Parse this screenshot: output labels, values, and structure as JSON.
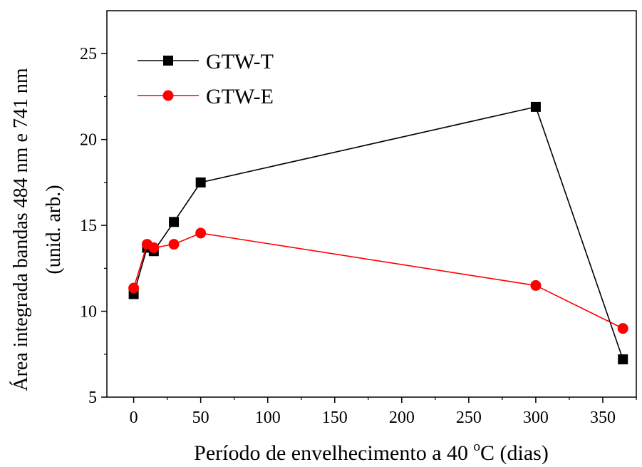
{
  "chart_data": {
    "type": "line",
    "title": "",
    "xlabel_main": "Período de envelhecimento a 40 ",
    "xlabel_sup": "o",
    "xlabel_tail": "C (dias)",
    "ylabel_line1": "Área integrada bandas 484 nm e 741 nm",
    "ylabel_line2": "(unid. arb.)",
    "xlim": [
      -20,
      375
    ],
    "ylim": [
      5,
      27.5
    ],
    "xticks": [
      0,
      50,
      100,
      150,
      200,
      250,
      300,
      350
    ],
    "yticks": [
      5,
      10,
      15,
      20,
      25
    ],
    "grid": false,
    "legend_position": "top-left",
    "series": [
      {
        "name": "GTW-T",
        "color": "#000000",
        "marker": "square",
        "x": [
          0,
          10,
          15,
          30,
          50,
          300,
          365
        ],
        "y": [
          11.0,
          13.7,
          13.5,
          15.2,
          17.5,
          21.9,
          7.2
        ]
      },
      {
        "name": "GTW-E",
        "color": "#ff0000",
        "marker": "circle",
        "x": [
          0,
          10,
          15,
          30,
          50,
          300,
          365
        ],
        "y": [
          11.35,
          13.9,
          13.7,
          13.9,
          14.55,
          11.5,
          9.0
        ]
      }
    ]
  }
}
